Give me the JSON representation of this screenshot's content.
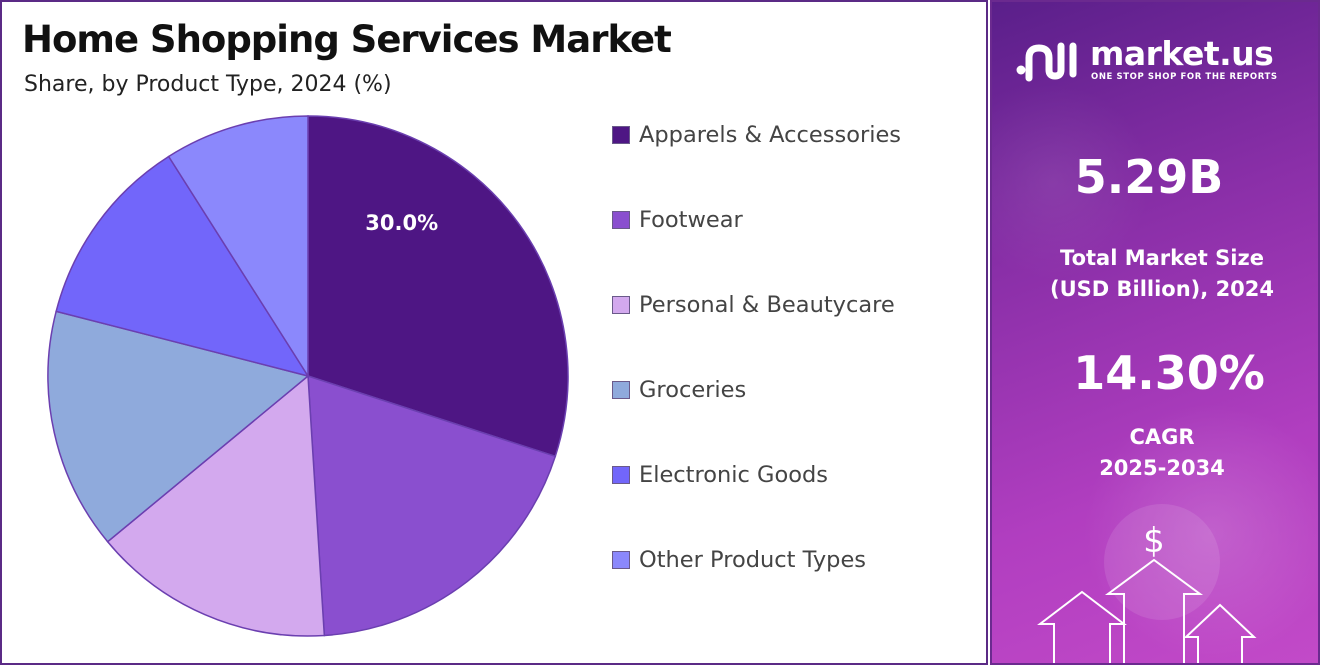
{
  "title": "Home Shopping Services Market",
  "subtitle": "Share, by Product Type, 2024 (%)",
  "chart_data": {
    "type": "pie",
    "title": "Home Shopping Services Market",
    "subtitle": "Share, by Product Type, 2024 (%)",
    "categories": [
      "Apparels & Accessories",
      "Footwear",
      "Personal & Beautycare",
      "Groceries",
      "Electronic Goods",
      "Other Product Types"
    ],
    "values": [
      30.0,
      19.0,
      15.0,
      15.0,
      12.0,
      9.0
    ],
    "colors": [
      "#4e1684",
      "#8a4fcf",
      "#d3a9ee",
      "#8faadc",
      "#7266fa",
      "#8b88fc"
    ],
    "data_labels": [
      "30.0%",
      "",
      "",
      "",
      "",
      ""
    ],
    "legend_position": "right",
    "start_angle_deg": 0,
    "direction": "clockwise"
  },
  "legend": [
    {
      "label": "Apparels & Accessories",
      "color": "#4e1684"
    },
    {
      "label": "Footwear",
      "color": "#8a4fcf"
    },
    {
      "label": "Personal & Beautycare",
      "color": "#d3a9ee"
    },
    {
      "label": "Groceries",
      "color": "#8faadc"
    },
    {
      "label": "Electronic Goods",
      "color": "#7266fa"
    },
    {
      "label": "Other Product Types",
      "color": "#8b88fc"
    }
  ],
  "brand": {
    "name": "market.us",
    "tagline": "ONE STOP SHOP FOR THE REPORTS",
    "logo_icon": "market-us-logo-icon"
  },
  "stats": {
    "market_size_value": "5.29B",
    "market_size_label_line1": "Total Market Size",
    "market_size_label_line2": "(USD Billion), 2024",
    "cagr_value": "14.30%",
    "cagr_label_line1": "CAGR",
    "cagr_label_line2": "2025-2034"
  },
  "decor": {
    "dollar_symbol": "$",
    "arrow_icon": "up-arrow-icon"
  }
}
